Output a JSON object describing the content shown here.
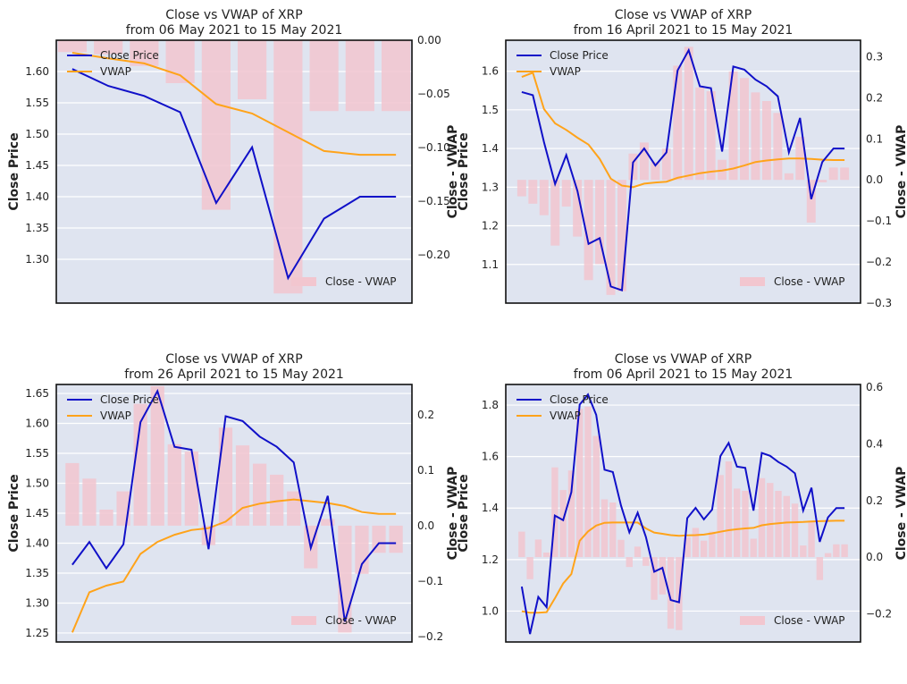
{
  "figure": {
    "background": "#ffffff",
    "plot_bg": "#dfe4f0",
    "grid_color": "#ffffff",
    "close_color": "#1010c8",
    "vwap_color": "#ffa31a",
    "bar_color": "#f2c6cf"
  },
  "chart_data": [
    {
      "type": "line",
      "title_line1": "Close vs VWAP of XRP",
      "title_line2": "from 06 May 2021 to 15 May 2021",
      "ylabel_left": "Close Price",
      "ylabel_right": "Close - VWAP",
      "legend": [
        "Close Price",
        "VWAP"
      ],
      "bar_legend": "Close - VWAP",
      "ylim_left": [
        1.23,
        1.65
      ],
      "ylim_right": [
        -0.245,
        0.0
      ],
      "yticks_left": [
        1.3,
        1.35,
        1.4,
        1.45,
        1.5,
        1.55,
        1.6
      ],
      "yticks_left_labels": [
        "1.30",
        "1.35",
        "1.40",
        "1.45",
        "1.50",
        "1.55",
        "1.60"
      ],
      "yticks_right": [
        -0.2,
        -0.15,
        -0.1,
        -0.05,
        0.0
      ],
      "yticks_right_labels": [
        "−0.20",
        "−0.15",
        "−0.10",
        "−0.05",
        "0.00"
      ],
      "close": [
        1.604,
        1.577,
        1.561,
        1.535,
        1.39,
        1.479,
        1.27,
        1.365,
        1.4,
        1.4
      ],
      "vwap": [
        1.63,
        1.621,
        1.613,
        1.594,
        1.548,
        1.533,
        1.503,
        1.473,
        1.467,
        1.467
      ],
      "bars": [
        -0.011,
        -0.013,
        -0.024,
        -0.04,
        -0.158,
        -0.055,
        -0.236,
        -0.066,
        -0.066,
        -0.066
      ]
    },
    {
      "type": "line",
      "title_line1": "Close vs VWAP of XRP",
      "title_line2": "from 16 April 2021 to 15 May 2021",
      "ylabel_left": "Close Price",
      "ylabel_right": "Close - VWAP",
      "legend": [
        "Close Price",
        "VWAP"
      ],
      "bar_legend": "Close - VWAP",
      "ylim_left": [
        1.0,
        1.68
      ],
      "ylim_right": [
        -0.3,
        0.34
      ],
      "yticks_left": [
        1.1,
        1.2,
        1.3,
        1.4,
        1.5,
        1.6
      ],
      "yticks_left_labels": [
        "1.1",
        "1.2",
        "1.3",
        "1.4",
        "1.5",
        "1.6"
      ],
      "yticks_right": [
        -0.3,
        -0.2,
        -0.1,
        0.0,
        0.1,
        0.2,
        0.3
      ],
      "yticks_right_labels": [
        "−0.3",
        "−0.2",
        "−0.1",
        "0.0",
        "0.1",
        "0.2",
        "0.3"
      ],
      "close": [
        1.546,
        1.538,
        1.416,
        1.308,
        1.383,
        1.29,
        1.153,
        1.168,
        1.043,
        1.033,
        1.364,
        1.4,
        1.356,
        1.39,
        1.602,
        1.654,
        1.561,
        1.556,
        1.392,
        1.612,
        1.604,
        1.578,
        1.561,
        1.535,
        1.39,
        1.479,
        1.269,
        1.365,
        1.4,
        1.4
      ],
      "vwap": [
        1.585,
        1.596,
        1.502,
        1.465,
        1.448,
        1.428,
        1.41,
        1.373,
        1.322,
        1.304,
        1.3,
        1.309,
        1.312,
        1.314,
        1.324,
        1.33,
        1.336,
        1.34,
        1.343,
        1.348,
        1.356,
        1.365,
        1.369,
        1.372,
        1.374,
        1.374,
        1.373,
        1.371,
        1.37,
        1.37
      ],
      "bars": [
        -0.04,
        -0.058,
        -0.086,
        -0.16,
        -0.065,
        -0.138,
        -0.244,
        -0.205,
        -0.28,
        -0.271,
        0.064,
        0.091,
        0.044,
        0.076,
        0.278,
        0.324,
        0.225,
        0.216,
        0.049,
        0.264,
        0.248,
        0.213,
        0.192,
        0.163,
        0.016,
        0.105,
        -0.104,
        -0.006,
        0.03,
        0.03
      ]
    },
    {
      "type": "line",
      "title_line1": "Close vs VWAP of XRP",
      "title_line2": "from 26 April 2021 to 15 May 2021",
      "ylabel_left": "Close Price",
      "ylabel_right": "Close - VWAP",
      "legend": [
        "Close Price",
        "VWAP"
      ],
      "bar_legend": "Close - VWAP",
      "ylim_left": [
        1.235,
        1.665
      ],
      "ylim_right": [
        -0.21,
        0.255
      ],
      "yticks_left": [
        1.25,
        1.3,
        1.35,
        1.4,
        1.45,
        1.5,
        1.55,
        1.6,
        1.65
      ],
      "yticks_left_labels": [
        "1.25",
        "1.30",
        "1.35",
        "1.40",
        "1.45",
        "1.50",
        "1.55",
        "1.60",
        "1.65"
      ],
      "yticks_right": [
        -0.2,
        -0.1,
        0.0,
        0.1,
        0.2
      ],
      "yticks_right_labels": [
        "−0.2",
        "−0.1",
        "0.0",
        "0.1",
        "0.2"
      ],
      "close": [
        1.364,
        1.402,
        1.358,
        1.398,
        1.602,
        1.654,
        1.561,
        1.556,
        1.39,
        1.612,
        1.604,
        1.578,
        1.561,
        1.535,
        1.392,
        1.479,
        1.269,
        1.365,
        1.4,
        1.4
      ],
      "vwap": [
        1.251,
        1.318,
        1.329,
        1.336,
        1.382,
        1.402,
        1.414,
        1.422,
        1.425,
        1.436,
        1.459,
        1.466,
        1.47,
        1.473,
        1.47,
        1.467,
        1.462,
        1.452,
        1.449,
        1.449
      ],
      "bars": [
        0.113,
        0.085,
        0.029,
        0.062,
        0.22,
        0.252,
        0.147,
        0.134,
        -0.035,
        0.177,
        0.145,
        0.112,
        0.092,
        0.062,
        -0.077,
        0.012,
        -0.193,
        -0.087,
        -0.049,
        -0.049
      ]
    },
    {
      "type": "line",
      "title_line1": "Close vs VWAP of XRP",
      "title_line2": "from 06 April 2021 to 15 May 2021",
      "ylabel_left": "Close Price",
      "ylabel_right": "Close - VWAP",
      "legend": [
        "Close Price",
        "VWAP"
      ],
      "bar_legend": "Close - VWAP",
      "ylim_left": [
        0.88,
        1.88
      ],
      "ylim_right": [
        -0.3,
        0.61
      ],
      "yticks_left": [
        1.0,
        1.2,
        1.4,
        1.6,
        1.8
      ],
      "yticks_left_labels": [
        "1.0",
        "1.2",
        "1.4",
        "1.6",
        "1.8"
      ],
      "yticks_right": [
        -0.2,
        0.0,
        0.2,
        0.4,
        0.6
      ],
      "yticks_right_labels": [
        "−0.2",
        "0.0",
        "0.2",
        "0.4",
        "0.6"
      ],
      "close": [
        1.095,
        0.911,
        1.055,
        1.015,
        1.371,
        1.353,
        1.462,
        1.802,
        1.841,
        1.762,
        1.549,
        1.54,
        1.409,
        1.306,
        1.382,
        1.288,
        1.153,
        1.168,
        1.043,
        1.034,
        1.361,
        1.401,
        1.356,
        1.394,
        1.602,
        1.653,
        1.561,
        1.556,
        1.39,
        1.614,
        1.603,
        1.579,
        1.561,
        1.535,
        1.39,
        1.479,
        1.269,
        1.364,
        1.4,
        1.4
      ],
      "vwap": [
        0.999,
        0.994,
        0.994,
        0.996,
        1.049,
        1.107,
        1.144,
        1.273,
        1.309,
        1.332,
        1.343,
        1.344,
        1.344,
        1.344,
        1.344,
        1.321,
        1.305,
        1.3,
        1.295,
        1.292,
        1.294,
        1.295,
        1.297,
        1.302,
        1.308,
        1.314,
        1.318,
        1.321,
        1.323,
        1.333,
        1.338,
        1.341,
        1.344,
        1.345,
        1.346,
        1.348,
        1.349,
        1.35,
        1.351,
        1.351
      ],
      "bars": [
        0.09,
        -0.078,
        0.062,
        0.016,
        0.317,
        0.237,
        0.306,
        0.524,
        0.532,
        0.428,
        0.204,
        0.193,
        0.061,
        -0.035,
        0.037,
        -0.031,
        -0.151,
        -0.132,
        -0.253,
        -0.258,
        0.07,
        0.103,
        0.058,
        0.09,
        0.29,
        0.338,
        0.242,
        0.234,
        0.065,
        0.279,
        0.262,
        0.234,
        0.216,
        0.189,
        0.041,
        0.129,
        -0.081,
        0.014,
        0.045,
        0.045
      ]
    }
  ]
}
